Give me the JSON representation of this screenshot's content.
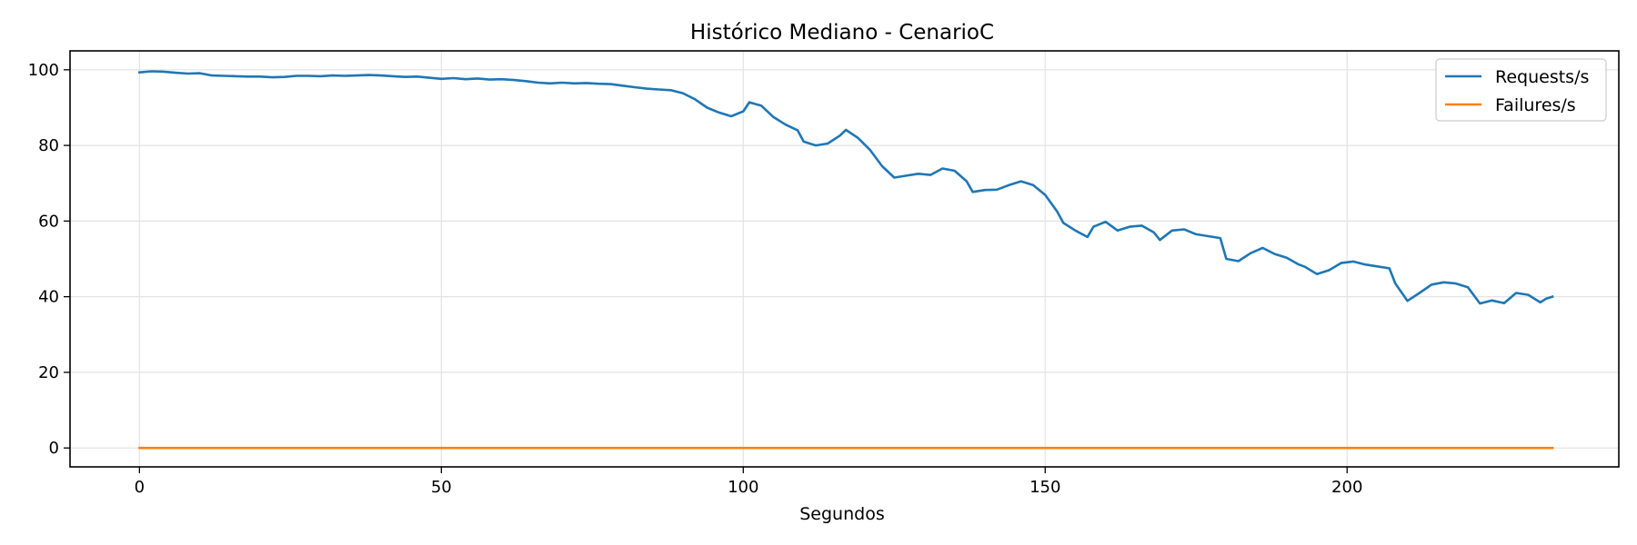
{
  "chart_data": {
    "type": "line",
    "title": "Histórico Mediano - CenarioC",
    "xlabel": "Segundos",
    "ylabel": "",
    "xlim": [
      -11.5,
      245
    ],
    "ylim": [
      -5,
      105
    ],
    "xticks": [
      0,
      50,
      100,
      150,
      200
    ],
    "yticks": [
      0,
      20,
      40,
      60,
      80,
      100
    ],
    "grid": true,
    "legend": "top-right",
    "series": [
      {
        "name": "Requests/s",
        "color": "#1f77b4",
        "x": [
          0,
          2,
          4,
          6,
          8,
          10,
          12,
          14,
          16,
          18,
          20,
          22,
          24,
          26,
          28,
          30,
          32,
          34,
          36,
          38,
          40,
          42,
          44,
          46,
          48,
          50,
          52,
          54,
          56,
          58,
          60,
          62,
          64,
          66,
          68,
          70,
          72,
          74,
          76,
          78,
          80,
          82,
          84,
          86,
          88,
          90,
          92,
          94,
          96,
          98,
          100,
          101,
          103,
          105,
          107,
          109,
          110,
          112,
          114,
          116,
          117,
          119,
          121,
          123,
          125,
          127,
          129,
          131,
          133,
          135,
          137,
          138,
          140,
          142,
          144,
          146,
          148,
          150,
          152,
          153,
          155,
          157,
          158,
          160,
          162,
          164,
          166,
          168,
          169,
          171,
          173,
          175,
          177,
          179,
          180,
          182,
          184,
          186,
          188,
          190,
          192,
          193,
          195,
          197,
          199,
          201,
          203,
          205,
          207,
          208,
          210,
          212,
          214,
          216,
          218,
          220,
          222,
          224,
          226,
          228,
          230,
          232,
          233,
          234
        ],
        "values": [
          99.3,
          99.6,
          99.5,
          99.2,
          99.0,
          99.1,
          98.5,
          98.4,
          98.3,
          98.2,
          98.2,
          98.0,
          98.1,
          98.4,
          98.4,
          98.3,
          98.5,
          98.4,
          98.5,
          98.6,
          98.5,
          98.3,
          98.1,
          98.2,
          97.9,
          97.6,
          97.8,
          97.5,
          97.7,
          97.4,
          97.5,
          97.3,
          97.0,
          96.6,
          96.4,
          96.6,
          96.4,
          96.5,
          96.3,
          96.2,
          95.8,
          95.4,
          95.0,
          94.8,
          94.6,
          93.8,
          92.2,
          90.0,
          88.7,
          87.7,
          89.0,
          91.4,
          90.5,
          87.5,
          85.5,
          84.0,
          81.0,
          80.0,
          80.5,
          82.6,
          84.1,
          82.0,
          78.8,
          74.5,
          71.5,
          72.0,
          72.5,
          72.2,
          73.9,
          73.3,
          70.5,
          67.7,
          68.2,
          68.3,
          69.5,
          70.5,
          69.5,
          66.9,
          62.5,
          59.5,
          57.5,
          55.8,
          58.5,
          59.8,
          57.5,
          58.5,
          58.8,
          57.0,
          55.0,
          57.5,
          57.8,
          56.5,
          56.0,
          55.5,
          50.0,
          49.4,
          51.5,
          52.9,
          51.3,
          50.3,
          48.5,
          47.9,
          46.0,
          47.0,
          48.9,
          49.3,
          48.5,
          48.0,
          47.5,
          43.5,
          38.9,
          41.0,
          43.2,
          43.8,
          43.5,
          42.5,
          38.2,
          39.0,
          38.3,
          41.0,
          40.5,
          38.5,
          39.5,
          40.0
        ]
      },
      {
        "name": "Failures/s",
        "color": "#ff7f0e",
        "x": [
          0,
          234
        ],
        "values": [
          0,
          0
        ]
      }
    ]
  }
}
